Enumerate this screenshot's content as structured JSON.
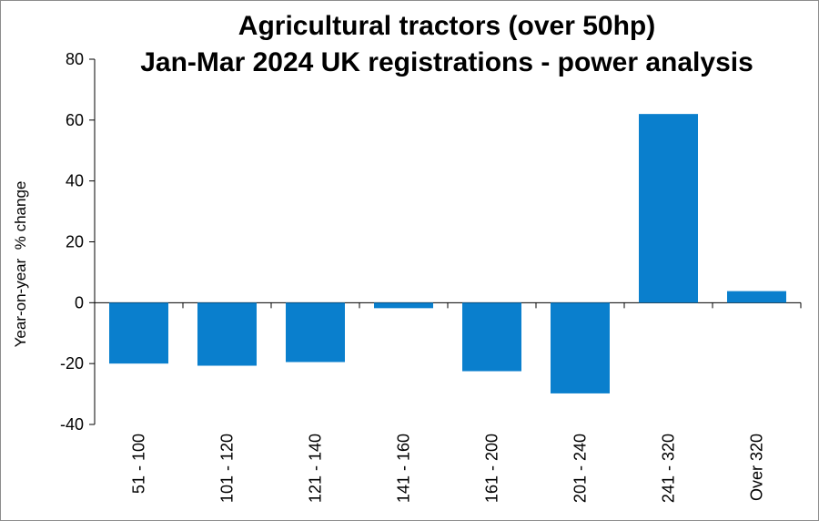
{
  "chart_data": {
    "type": "bar",
    "title": [
      "Agricultural tractors (over 50hp)",
      "Jan-Mar 2024 UK registrations - power analysis"
    ],
    "ylabel": "Year-on-year  % change",
    "xlabel": "",
    "categories": [
      "51 - 100",
      "101 - 120",
      "121 - 140",
      "141 - 160",
      "161 - 200",
      "201 - 240",
      "241 - 320",
      "Over 320"
    ],
    "values": [
      -20,
      -20.7,
      -19.5,
      -1.8,
      -22.5,
      -29.8,
      62,
      3.8
    ],
    "ylim": [
      -40,
      80
    ],
    "yticks": [
      -40,
      -20,
      0,
      20,
      40,
      60,
      80
    ],
    "grid": false,
    "legend": "none",
    "bar_color": "#0a7fcd"
  }
}
